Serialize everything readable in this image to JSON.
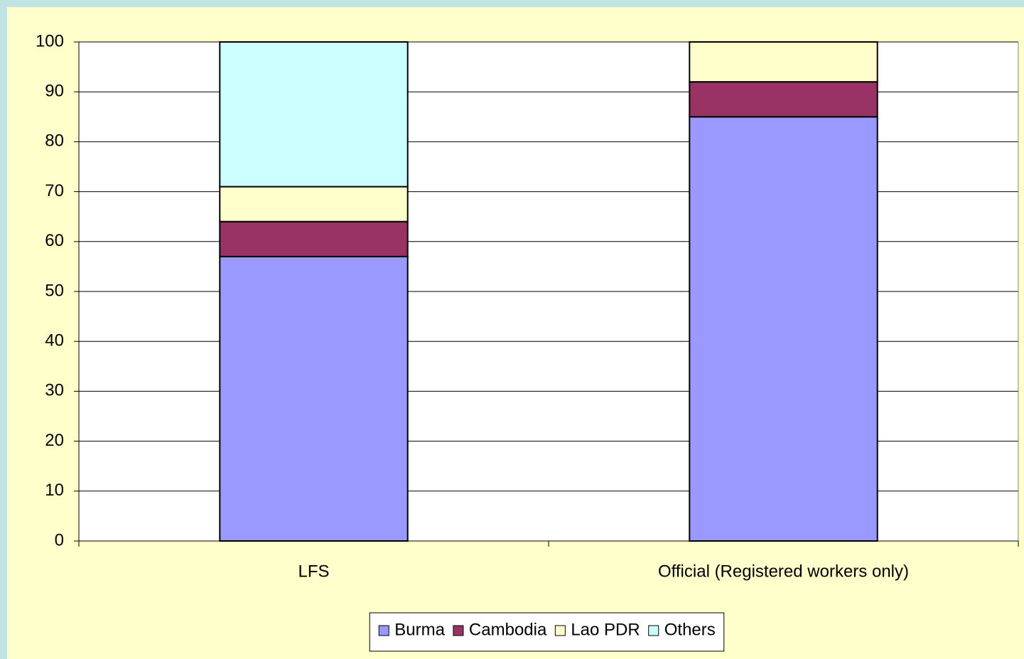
{
  "chart_data": {
    "type": "stacked_bar",
    "categories": [
      "LFS",
      "Official (Registered workers only)"
    ],
    "series": [
      {
        "name": "Burma",
        "color": "#9999ff",
        "values": [
          57,
          85
        ]
      },
      {
        "name": "Cambodia",
        "color": "#993366",
        "values": [
          7,
          7
        ]
      },
      {
        "name": "Lao PDR",
        "color": "#ffffcc",
        "values": [
          7,
          8
        ]
      },
      {
        "name": "Others",
        "color": "#ccffff",
        "values": [
          29,
          0
        ]
      }
    ],
    "ylim": [
      0,
      100
    ],
    "yticks": [
      0,
      10,
      20,
      30,
      40,
      50,
      60,
      70,
      80,
      90,
      100
    ],
    "grid": true,
    "legend": "bottom"
  }
}
